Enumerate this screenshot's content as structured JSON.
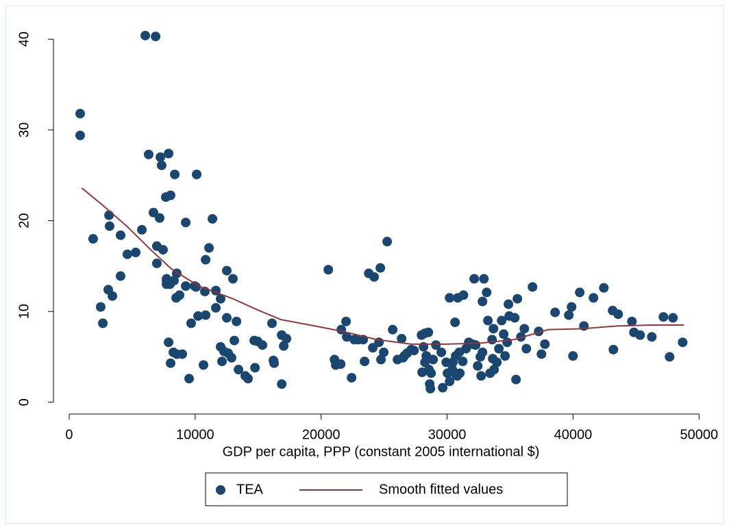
{
  "chart_data": {
    "type": "scatter",
    "xlabel": "GDP per capita, PPP (constant 2005 international $)",
    "xlim": [
      -1250,
      50800
    ],
    "xticks": [
      0,
      10000,
      20000,
      30000,
      40000,
      50000
    ],
    "ylim": [
      -1.3,
      41
    ],
    "yticks": [
      0,
      10,
      20,
      30,
      40
    ],
    "legend": "bottom",
    "series": [
      {
        "name": "TEA",
        "type": "scatter",
        "color": "#1a476f",
        "x": [
          870,
          870,
          6040,
          6860,
          1900,
          3160,
          3210,
          4080,
          4080,
          4620,
          5280,
          5770,
          3100,
          3430,
          2500,
          2670,
          6310,
          7890,
          7240,
          7340,
          8380,
          6690,
          8050,
          7670,
          7180,
          6960,
          7450,
          6960,
          7730,
          8000,
          8540,
          8320,
          9250,
          7730,
          7730,
          8490,
          8760,
          9250,
          10120,
          9960,
          10070,
          11370,
          11100,
          10830,
          11640,
          10770,
          12020,
          12510,
          13000,
          9680,
          10230,
          10830,
          11640,
          12510,
          13280,
          7890,
          8050,
          8270,
          8540,
          8980,
          9520,
          10660,
          12020,
          12290,
          12130,
          12620,
          12890,
          13110,
          13440,
          13980,
          14200,
          14750,
          14690,
          14960,
          15340,
          16100,
          16210,
          16270,
          16870,
          16870,
          17250,
          17030,
          20570,
          21060,
          21160,
          21550,
          21600,
          21980,
          22030,
          22420,
          22630,
          22960,
          23340,
          23450,
          23780,
          24210,
          24100,
          24700,
          24590,
          24750,
          24970,
          25240,
          25680,
          26060,
          26390,
          26500,
          26600,
          26820,
          27150,
          27370,
          27970,
          28240,
          28510,
          28130,
          28350,
          28020,
          28560,
          28730,
          28620,
          28670,
          28240,
          28890,
          29110,
          29540,
          29650,
          29930,
          30200,
          30630,
          30850,
          31300,
          30200,
          30410,
          30630,
          30800,
          31010,
          30030,
          30460,
          30680,
          30960,
          31240,
          31500,
          31720,
          32000,
          32260,
          32430,
          32640,
          32810,
          32150,
          32920,
          32810,
          33140,
          32700,
          33240,
          33410,
          33730,
          33950,
          33570,
          33680,
          33620,
          34110,
          34330,
          34490,
          34870,
          34770,
          34600,
          34930,
          35370,
          35580,
          35470,
          35860,
          36130,
          36290,
          36780,
          37270,
          37490,
          37760,
          38570,
          39660,
          39880,
          39990,
          40530,
          40860,
          41620,
          42440,
          43140,
          43200,
          43580,
          44670,
          44830,
          45320,
          46250,
          47170,
          47930,
          47660,
          48700
        ],
        "values": [
          31.8,
          29.4,
          40.4,
          40.3,
          18.0,
          20.6,
          19.4,
          18.4,
          13.9,
          16.3,
          16.5,
          19.0,
          12.4,
          11.7,
          10.5,
          8.7,
          27.3,
          27.4,
          27.0,
          26.1,
          25.1,
          20.9,
          22.8,
          22.6,
          20.3,
          17.2,
          16.8,
          15.3,
          13.6,
          13.0,
          14.2,
          13.4,
          12.8,
          13.4,
          13.0,
          11.5,
          11.8,
          19.8,
          25.1,
          12.8,
          12.7,
          20.2,
          17.0,
          15.7,
          12.3,
          12.2,
          11.4,
          14.5,
          13.6,
          8.7,
          9.5,
          9.6,
          10.4,
          9.3,
          8.9,
          6.6,
          4.3,
          5.5,
          5.3,
          5.3,
          2.6,
          4.1,
          6.1,
          5.6,
          4.5,
          5.4,
          4.9,
          6.8,
          3.6,
          2.9,
          2.6,
          3.8,
          6.8,
          6.7,
          6.3,
          8.7,
          4.6,
          4.3,
          2.0,
          7.4,
          7.0,
          6.2,
          14.6,
          4.7,
          4.1,
          4.2,
          8.0,
          8.9,
          7.2,
          2.7,
          6.9,
          6.9,
          6.9,
          4.5,
          14.2,
          13.8,
          6.0,
          14.8,
          6.6,
          4.7,
          5.5,
          17.7,
          8.0,
          4.7,
          7.0,
          4.9,
          5.1,
          5.4,
          5.8,
          5.7,
          7.4,
          7.6,
          7.7,
          6.1,
          5.1,
          3.3,
          3.6,
          3.2,
          2.0,
          1.5,
          4.4,
          4.7,
          6.3,
          5.5,
          1.6,
          4.4,
          11.5,
          8.8,
          11.5,
          11.8,
          2.3,
          3.6,
          3.2,
          2.9,
          3.2,
          3.2,
          4.4,
          5.1,
          5.5,
          4.5,
          5.9,
          6.6,
          6.4,
          6.3,
          4.0,
          5.0,
          5.5,
          13.6,
          13.6,
          11.1,
          12.1,
          2.9,
          9.0,
          3.2,
          3.6,
          4.4,
          6.9,
          8.1,
          4.8,
          5.9,
          9.0,
          7.5,
          10.8,
          6.6,
          5.1,
          9.5,
          9.3,
          11.4,
          2.5,
          7.2,
          8.1,
          5.9,
          12.7,
          7.8,
          5.3,
          6.4,
          9.9,
          9.6,
          10.5,
          5.1,
          12.1,
          8.4,
          11.5,
          12.6,
          10.1,
          5.8,
          9.7,
          8.9,
          7.7,
          7.4,
          7.2,
          9.4,
          9.3,
          5.0,
          6.6
        ]
      },
      {
        "name": "Smooth fitted values",
        "type": "line",
        "color": "#90353b",
        "x": [
          1000,
          2670,
          4570,
          6470,
          8110,
          10280,
          13000,
          14910,
          16810,
          19530,
          21710,
          24430,
          27150,
          29870,
          32590,
          35310,
          38030,
          40750,
          43470,
          46190,
          48800
        ],
        "values": [
          23.6,
          21.7,
          19.4,
          16.8,
          14.7,
          12.8,
          11.4,
          10.2,
          9.1,
          8.4,
          7.8,
          6.9,
          6.4,
          6.4,
          6.5,
          6.9,
          8.0,
          8.1,
          8.4,
          8.5,
          8.5
        ]
      }
    ]
  }
}
